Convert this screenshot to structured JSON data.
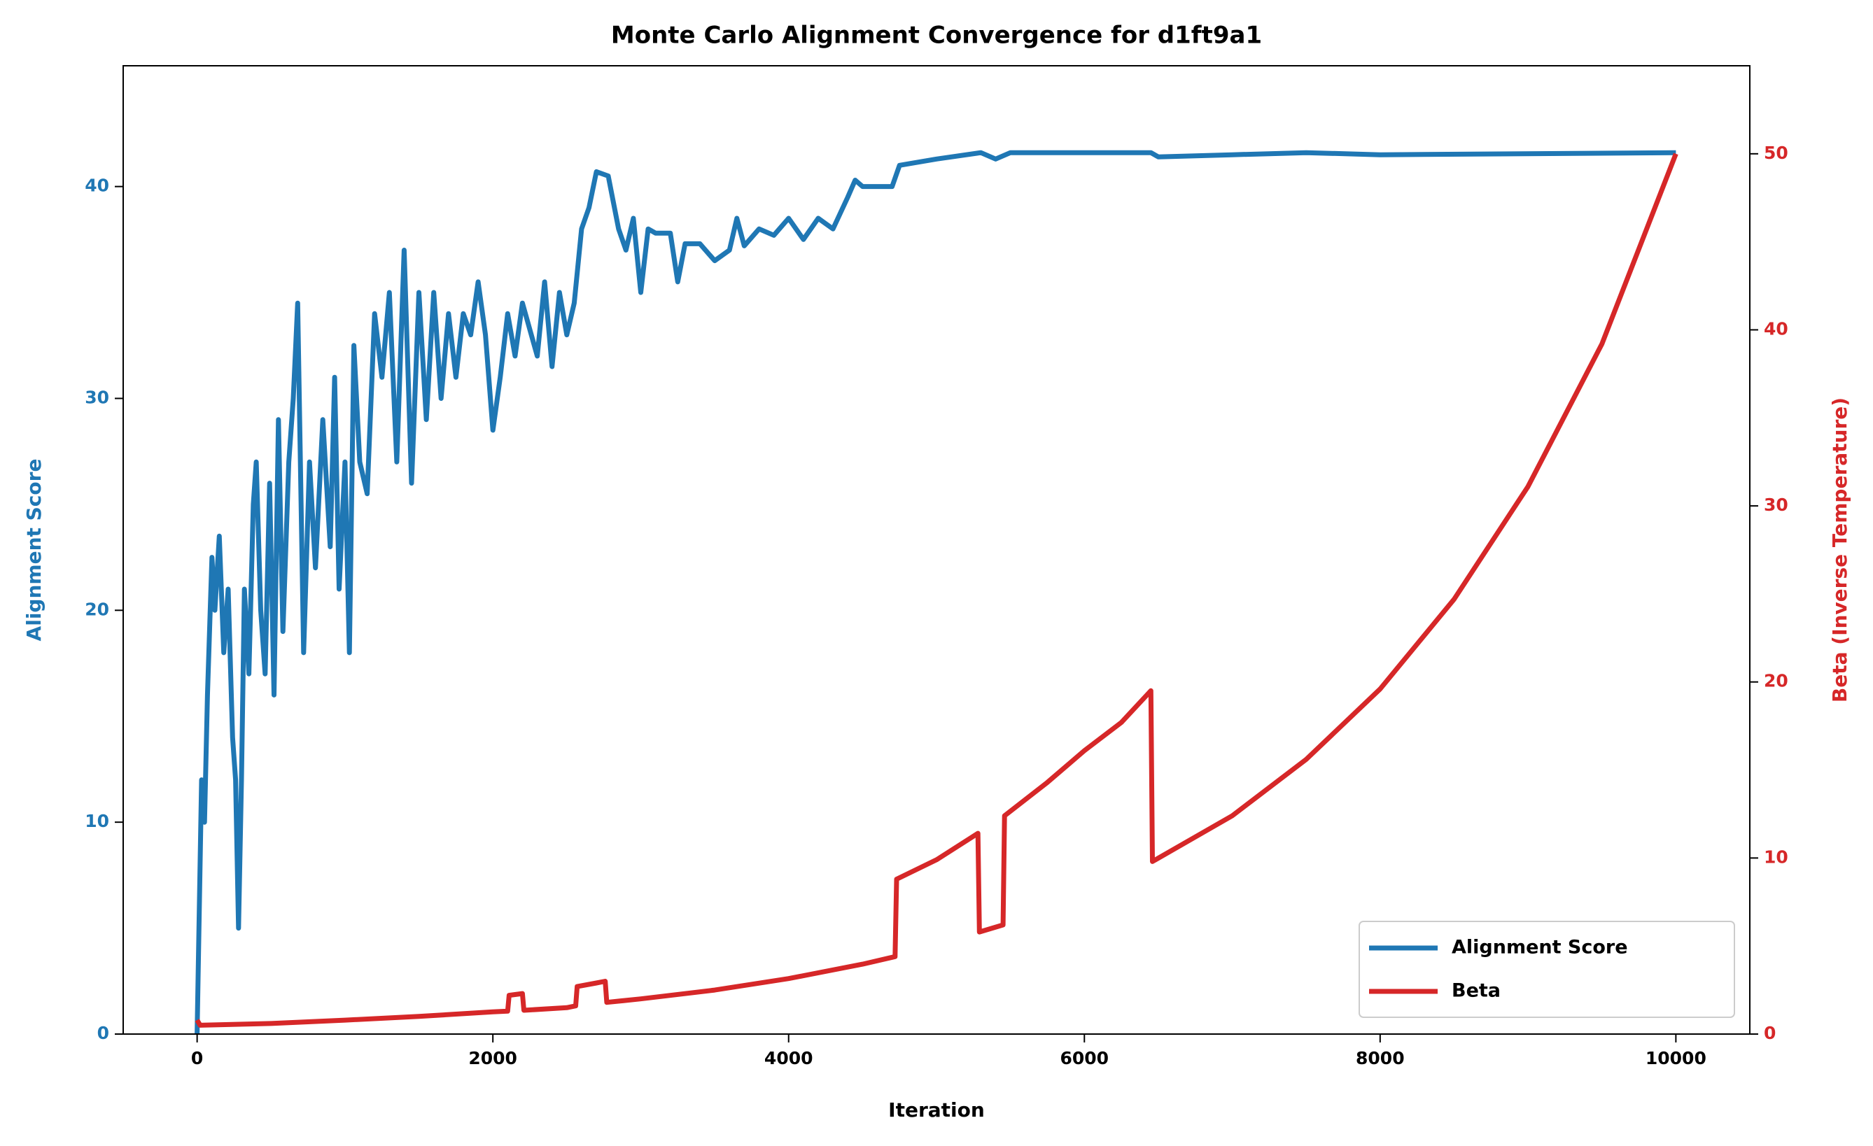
{
  "chart_data": {
    "type": "line",
    "title": "Monte Carlo Alignment Convergence for d1ft9a1",
    "xlabel": "Iteration",
    "ylabel": "Alignment Score",
    "y2label": "Beta (Inverse Temperature)",
    "xlim": [
      -500,
      10500
    ],
    "xticks": [
      0,
      2000,
      4000,
      6000,
      8000,
      10000
    ],
    "ylim": [
      0,
      45.7
    ],
    "yticks": [
      0,
      10,
      20,
      30,
      40
    ],
    "y2lim": [
      0,
      55
    ],
    "y2ticks": [
      0,
      10,
      20,
      30,
      40,
      50
    ],
    "legend_loc": "lower right",
    "series": [
      {
        "name": "Alignment Score",
        "color": "#1f77b4",
        "axis": "y",
        "x": [
          0,
          30,
          50,
          70,
          100,
          120,
          150,
          180,
          210,
          240,
          260,
          280,
          300,
          320,
          350,
          380,
          400,
          430,
          460,
          490,
          520,
          550,
          580,
          620,
          650,
          680,
          720,
          760,
          800,
          850,
          900,
          930,
          960,
          1000,
          1030,
          1060,
          1100,
          1150,
          1200,
          1250,
          1300,
          1350,
          1400,
          1450,
          1500,
          1550,
          1600,
          1650,
          1700,
          1750,
          1800,
          1850,
          1900,
          1950,
          2000,
          2050,
          2100,
          2150,
          2200,
          2300,
          2350,
          2400,
          2450,
          2500,
          2550,
          2600,
          2650,
          2700,
          2780,
          2850,
          2900,
          2950,
          3000,
          3050,
          3100,
          3200,
          3250,
          3300,
          3400,
          3500,
          3600,
          3650,
          3700,
          3800,
          3900,
          4000,
          4100,
          4200,
          4300,
          4400,
          4450,
          4500,
          4700,
          4750,
          5000,
          5300,
          5400,
          5500,
          6000,
          6450,
          6500,
          7000,
          7500,
          8000,
          10000
        ],
        "values": [
          0,
          12,
          10,
          16,
          22.5,
          20,
          23.5,
          18,
          21,
          14,
          12,
          5,
          12,
          21,
          17,
          25,
          27,
          20,
          17,
          26,
          16,
          29,
          19,
          27,
          30,
          34.5,
          18,
          27,
          22,
          29,
          23,
          31,
          21,
          27,
          18,
          32.5,
          27,
          25.5,
          34,
          31,
          35,
          27,
          37,
          26,
          35,
          29,
          35,
          30,
          34,
          31,
          34,
          33,
          35.5,
          33,
          28.5,
          31,
          34,
          32,
          34.5,
          32,
          35.5,
          31.5,
          35,
          33,
          34.5,
          38,
          39,
          40.7,
          40.5,
          38,
          37,
          38.5,
          35,
          38,
          37.8,
          37.8,
          35.5,
          37.3,
          37.3,
          36.5,
          37,
          38.5,
          37.2,
          38,
          37.7,
          38.5,
          37.5,
          38.5,
          38,
          39.5,
          40.3,
          40,
          40,
          41,
          41.3,
          41.6,
          41.3,
          41.6,
          41.6,
          41.6,
          41.4,
          41.5,
          41.6,
          41.5,
          41.6
        ]
      },
      {
        "name": "Beta",
        "color": "#d62728",
        "axis": "y2",
        "x": [
          0,
          20,
          500,
          1000,
          1500,
          2000,
          2100,
          2110,
          2200,
          2210,
          2500,
          2560,
          2570,
          2700,
          2760,
          2770,
          3000,
          3500,
          4000,
          4500,
          4720,
          4730,
          5000,
          5280,
          5290,
          5450,
          5460,
          5750,
          6000,
          6250,
          6450,
          6460,
          7000,
          7500,
          8000,
          8500,
          9000,
          9500,
          10000
        ],
        "values": [
          0.8,
          0.5,
          0.6,
          0.79,
          1.0,
          1.26,
          1.3,
          2.2,
          2.3,
          1.35,
          1.5,
          1.6,
          2.7,
          2.9,
          3.0,
          1.8,
          2.0,
          2.5,
          3.15,
          3.97,
          4.4,
          8.8,
          9.9,
          11.4,
          5.8,
          6.2,
          12.4,
          14.3,
          16.1,
          17.7,
          19.5,
          9.8,
          12.4,
          15.6,
          19.6,
          24.7,
          31.1,
          39.2,
          50
        ]
      }
    ]
  }
}
